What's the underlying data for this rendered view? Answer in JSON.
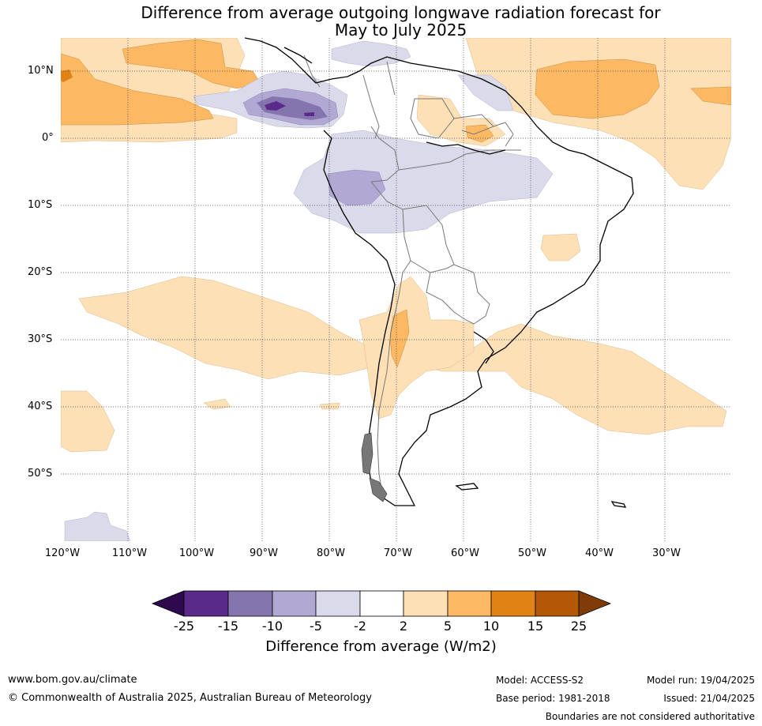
{
  "title": {
    "line1": "Difference from average outgoing longwave radiation forecast for",
    "line2": "May to July 2025"
  },
  "map": {
    "lat_labels": [
      "10°N",
      "0°",
      "10°S",
      "20°S",
      "30°S",
      "40°S",
      "50°S"
    ],
    "lon_labels": [
      "120°W",
      "110°W",
      "100°W",
      "90°W",
      "80°W",
      "70°W",
      "60°W",
      "50°W",
      "40°W",
      "30°W"
    ],
    "extent": {
      "lon_min": -120,
      "lon_max": -20,
      "lat_min": -60,
      "lat_max": 15
    }
  },
  "colorbar": {
    "ticks": [
      "-25",
      "-15",
      "-10",
      "-5",
      "-2",
      "2",
      "5",
      "10",
      "15",
      "25"
    ],
    "colors": [
      "#2d0a4d",
      "#5a2a8a",
      "#8575ae",
      "#b1a9d3",
      "#dadaeb",
      "#ffffff",
      "#fee0b6",
      "#fdb863",
      "#e08214",
      "#b35806",
      "#7f3b08"
    ],
    "label": "Difference from average (W/m2)"
  },
  "footer": {
    "url": "www.bom.gov.au/climate",
    "copyright": "© Commonwealth of Australia 2025, Australian Bureau of Meteorology",
    "model": "Model: ACCESS-S2",
    "base_period": "Base period: 1981-2018",
    "model_run": "Model run: 19/04/2025",
    "issued": "Issued: 21/04/2025",
    "disclaimer": "Boundaries are not considered authoritative"
  }
}
